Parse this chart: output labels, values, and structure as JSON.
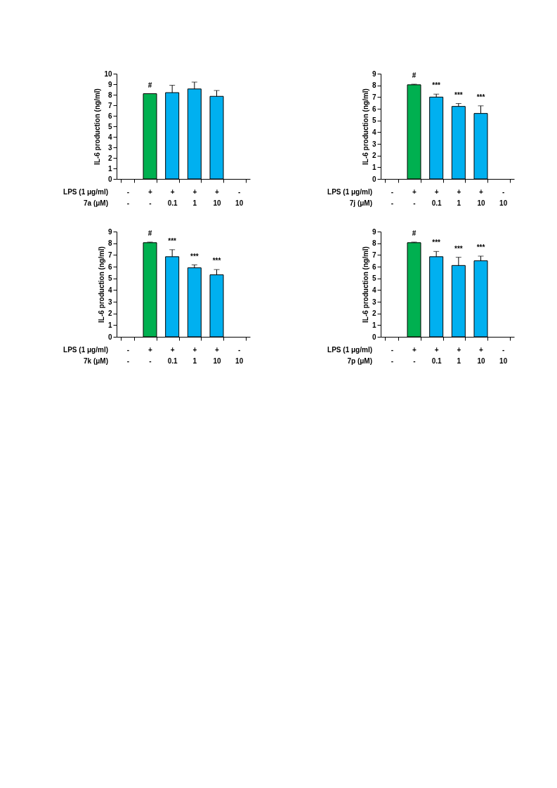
{
  "chart_data": [
    {
      "type": "bar",
      "ylabel": "IL-6 production (ng/ml)",
      "categories": [
        "-\n-",
        "+\n-",
        "+\n0.1",
        "+\n1",
        "+\n10",
        "-\n10"
      ],
      "values": [
        null,
        8.1,
        8.2,
        8.55,
        7.85,
        null
      ],
      "colors": [
        "#00b050",
        "#00b050",
        "#00b0f0",
        "#00b0f0",
        "#00b0f0",
        "#00b0f0"
      ],
      "errors": [
        null,
        null,
        [
          8.2,
          8.9
        ],
        [
          8.55,
          9.2
        ],
        [
          7.85,
          8.4
        ],
        null
      ],
      "ylim": [
        0,
        10
      ],
      "yticks": [
        0,
        1,
        2,
        3,
        4,
        5,
        6,
        7,
        8,
        9,
        10
      ],
      "annotations": [
        "LPS (1 μg/ml)",
        "7a (μM)",
        {
          "text": "#",
          "x": "+\n-",
          "y": 8.1
        }
      ]
    },
    {
      "type": "bar",
      "ylabel": "IL-6 production (ng/ml)",
      "categories": [
        "-\n-",
        "+\n-",
        "+\n0.1",
        "+\n1",
        "+\n10",
        "-\n10"
      ],
      "values": [
        null,
        8.05,
        7.0,
        6.2,
        5.6,
        null
      ],
      "colors": [
        "#00b050",
        "#00b050",
        "#00b0f0",
        "#00b0f0",
        "#00b0f0",
        "#00b0f0"
      ],
      "errors": [
        null,
        [
          8.05,
          8.1
        ],
        [
          7.0,
          7.25
        ],
        [
          6.2,
          6.45
        ],
        [
          5.6,
          6.25
        ],
        null
      ],
      "ylim": [
        0,
        9
      ],
      "yticks": [
        0,
        1,
        2,
        3,
        4,
        5,
        6,
        7,
        8,
        9
      ],
      "annotations": [
        "LPS (1 μg/ml)",
        "7j (μM)",
        {
          "text": "#",
          "x": "+\n-",
          "y": 8.1
        },
        {
          "text": "***",
          "x": "+\n0.1",
          "y": 7.25
        },
        {
          "text": "***",
          "x": "+\n1",
          "y": 6.45
        },
        {
          "text": "***",
          "x": "+\n10",
          "y": 6.25
        }
      ]
    },
    {
      "type": "bar",
      "ylabel": "IL-6 production (ng/ml)",
      "categories": [
        "-\n-",
        "+\n-",
        "+\n0.1",
        "+\n1",
        "+\n10",
        "-\n10"
      ],
      "values": [
        null,
        8.05,
        6.85,
        5.9,
        5.3,
        null
      ],
      "colors": [
        "#00b050",
        "#00b050",
        "#00b0f0",
        "#00b0f0",
        "#00b0f0",
        "#00b0f0"
      ],
      "errors": [
        null,
        [
          8.05,
          8.1
        ],
        [
          6.85,
          7.45
        ],
        [
          5.9,
          6.15
        ],
        [
          5.3,
          5.75
        ],
        null
      ],
      "ylim": [
        0,
        9
      ],
      "yticks": [
        0,
        1,
        2,
        3,
        4,
        5,
        6,
        7,
        8,
        9
      ],
      "annotations": [
        "LPS (1 μg/ml)",
        "7k (μM)",
        {
          "text": "#",
          "x": "+\n-",
          "y": 8.1
        },
        {
          "text": "***",
          "x": "+\n0.1",
          "y": 7.45
        },
        {
          "text": "***",
          "x": "+\n1",
          "y": 6.15
        },
        {
          "text": "***",
          "x": "+\n10",
          "y": 5.75
        }
      ]
    },
    {
      "type": "bar",
      "ylabel": "IL-6 production (ng/ml)",
      "categories": [
        "-\n-",
        "+\n-",
        "+\n0.1",
        "+\n1",
        "+\n10",
        "-\n10"
      ],
      "values": [
        null,
        8.05,
        6.85,
        6.1,
        6.5,
        null
      ],
      "colors": [
        "#00b050",
        "#00b050",
        "#00b0f0",
        "#00b0f0",
        "#00b0f0",
        "#00b0f0"
      ],
      "errors": [
        null,
        [
          8.05,
          8.1
        ],
        [
          6.85,
          7.3
        ],
        [
          6.1,
          6.8
        ],
        [
          6.5,
          6.9
        ],
        null
      ],
      "ylim": [
        0,
        9
      ],
      "yticks": [
        0,
        1,
        2,
        3,
        4,
        5,
        6,
        7,
        8,
        9
      ],
      "annotations": [
        "LPS (1 μg/ml)",
        "7p (μM)",
        {
          "text": "#",
          "x": "+\n-",
          "y": 8.1
        },
        {
          "text": "***",
          "x": "+\n0.1",
          "y": 7.3
        },
        {
          "text": "***",
          "x": "+\n1",
          "y": 6.8
        },
        {
          "text": "***",
          "x": "+\n10",
          "y": 6.9
        }
      ]
    }
  ]
}
